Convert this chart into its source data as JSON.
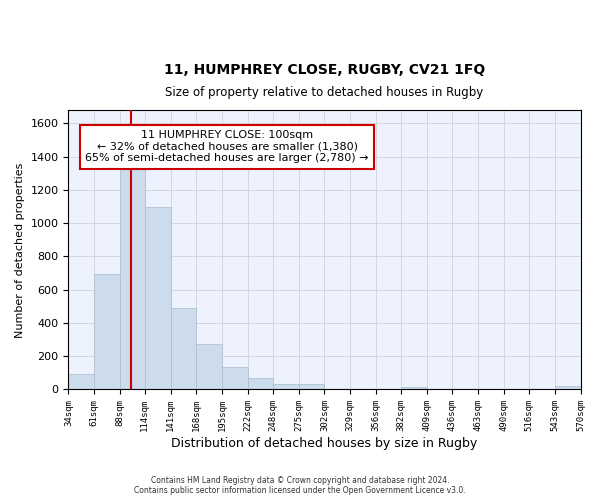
{
  "title": "11, HUMPHREY CLOSE, RUGBY, CV21 1FQ",
  "subtitle": "Size of property relative to detached houses in Rugby",
  "xlabel": "Distribution of detached houses by size in Rugby",
  "ylabel": "Number of detached properties",
  "footer_line1": "Contains HM Land Registry data © Crown copyright and database right 2024.",
  "footer_line2": "Contains public sector information licensed under the Open Government Licence v3.0.",
  "annotation_line1": "11 HUMPHREY CLOSE: 100sqm",
  "annotation_line2": "← 32% of detached houses are smaller (1,380)",
  "annotation_line3": "65% of semi-detached houses are larger (2,780) →",
  "property_size": 100,
  "bar_color": "#ccdcec",
  "bar_edge_color": "#aabbcc",
  "redline_color": "#cc0000",
  "annotation_box_edge": "#cc0000",
  "grid_color": "#cccccc",
  "plot_background_color": "#eef2ff",
  "fig_background_color": "#ffffff",
  "ylim": [
    0,
    1680
  ],
  "yticks": [
    0,
    200,
    400,
    600,
    800,
    1000,
    1200,
    1400,
    1600
  ],
  "bin_edges": [
    34,
    61,
    88,
    114,
    141,
    168,
    195,
    222,
    248,
    275,
    302,
    329,
    356,
    382,
    409,
    436,
    463,
    490,
    516,
    543,
    570
  ],
  "bar_heights": [
    95,
    695,
    1330,
    1095,
    490,
    275,
    135,
    70,
    32,
    35,
    0,
    0,
    0,
    15,
    0,
    0,
    0,
    0,
    0,
    20
  ]
}
